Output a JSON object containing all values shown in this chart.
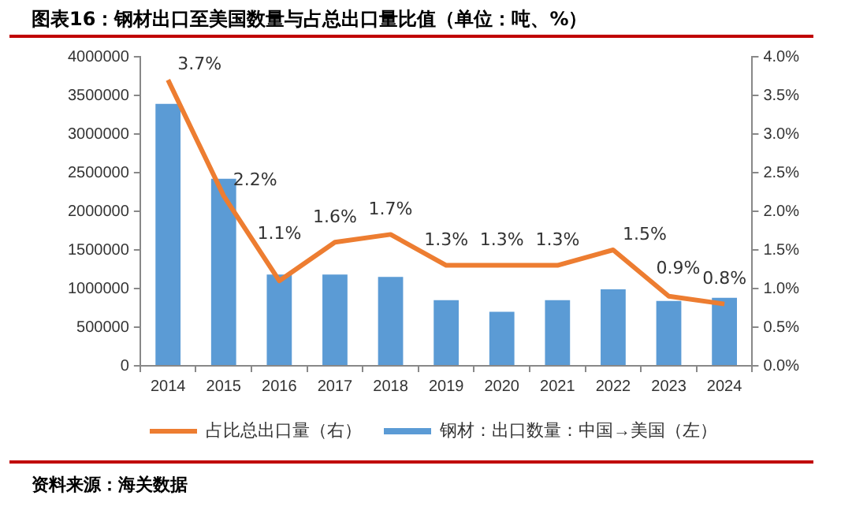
{
  "chart_data": {
    "type": "bar",
    "title": "图表16：钢材出口至美国数量与占总出口量比值（单位：吨、%）",
    "categories": [
      "2014",
      "2015",
      "2016",
      "2017",
      "2018",
      "2019",
      "2020",
      "2021",
      "2022",
      "2023",
      "2024"
    ],
    "series": [
      {
        "name": "钢材：出口数量：中国→美国（左）",
        "type": "bar",
        "color": "#5b9bd5",
        "values": [
          3390000,
          2420000,
          1180000,
          1180000,
          1150000,
          850000,
          700000,
          850000,
          990000,
          840000,
          880000
        ]
      },
      {
        "name": "占比总出口量（右）",
        "type": "line",
        "axis": "y2",
        "color": "#ed7d31",
        "values": [
          3.7,
          2.2,
          1.1,
          1.6,
          1.7,
          1.3,
          1.3,
          1.3,
          1.5,
          0.9,
          0.8
        ],
        "value_labels": [
          "3.7%",
          "2.2%",
          "1.1%",
          "1.6%",
          "1.7%",
          "1.3%",
          "1.3%",
          "1.3%",
          "1.5%",
          "0.9%",
          "0.8%"
        ]
      }
    ],
    "ylim": [
      0,
      4000000
    ],
    "yticks": [
      0,
      500000,
      1000000,
      1500000,
      2000000,
      2500000,
      3000000,
      3500000,
      4000000
    ],
    "y2lim": [
      0,
      4
    ],
    "y2ticks": [
      {
        "value": 0,
        "label": "0.0%"
      },
      {
        "value": 0.5,
        "label": "0.5%"
      },
      {
        "value": 1,
        "label": "1.0%"
      },
      {
        "value": 1.5,
        "label": "1.5%"
      },
      {
        "value": 2,
        "label": "2.0%"
      },
      {
        "value": 2.5,
        "label": "2.5%"
      },
      {
        "value": 3,
        "label": "3.0%"
      },
      {
        "value": 3.5,
        "label": "3.5%"
      },
      {
        "value": 4,
        "label": "4.0%"
      }
    ],
    "grid": false,
    "legend": "bottom",
    "marker": "none",
    "line_style": "solid",
    "annotations": [
      "资料来源：海关数据"
    ]
  }
}
